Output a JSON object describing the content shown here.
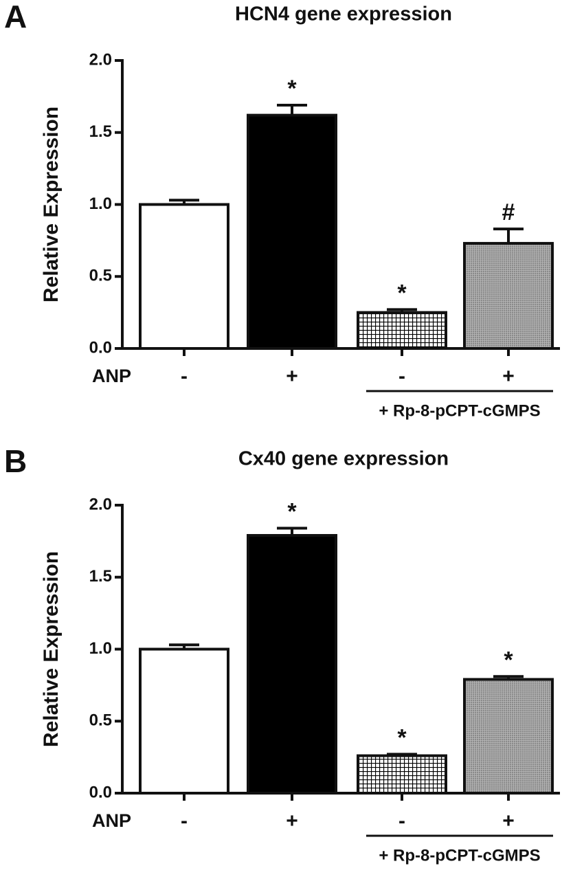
{
  "chart_data": [
    {
      "type": "bar",
      "panel": "A",
      "title": "HCN4 gene expression",
      "ylabel": "Relative Expression",
      "category_row_label": "ANP",
      "categories": [
        "-",
        "+",
        "-",
        "+"
      ],
      "values": [
        1.0,
        1.62,
        0.25,
        0.73
      ],
      "errors": [
        0.03,
        0.07,
        0.02,
        0.1
      ],
      "value_annotations": [
        null,
        "*",
        "*",
        "#"
      ],
      "colors": [
        "#ffffff",
        "#000000",
        "#ffffff",
        "#999999"
      ],
      "patterns": [
        "none",
        "none",
        "grid",
        "fine"
      ],
      "group_label": "+ Rp-8-pCPT-cGMPS",
      "group_categories": [
        2,
        3
      ],
      "ylim": [
        0,
        2
      ],
      "yticks": [
        {
          "value": 0,
          "label": "0.0"
        },
        {
          "value": 0.5,
          "label": "0.5"
        },
        {
          "value": 1,
          "label": "1.0"
        },
        {
          "value": 1.5,
          "label": "1.5"
        },
        {
          "value": 2,
          "label": "2.0"
        }
      ]
    },
    {
      "type": "bar",
      "panel": "B",
      "title": "Cx40 gene expression",
      "ylabel": "Relative Expression",
      "category_row_label": "ANP",
      "categories": [
        "-",
        "+",
        "-",
        "+"
      ],
      "values": [
        1.0,
        1.79,
        0.26,
        0.79
      ],
      "errors": [
        0.03,
        0.05,
        0.01,
        0.02
      ],
      "value_annotations": [
        null,
        "*",
        "*",
        "*"
      ],
      "colors": [
        "#ffffff",
        "#000000",
        "#ffffff",
        "#999999"
      ],
      "patterns": [
        "none",
        "none",
        "grid",
        "fine"
      ],
      "group_label": "+ Rp-8-pCPT-cGMPS",
      "group_categories": [
        2,
        3
      ],
      "ylim": [
        0,
        2
      ],
      "yticks": [
        {
          "value": 0,
          "label": "0.0"
        },
        {
          "value": 0.5,
          "label": "0.5"
        },
        {
          "value": 1,
          "label": "1.0"
        },
        {
          "value": 1.5,
          "label": "1.5"
        },
        {
          "value": 2,
          "label": "2.0"
        }
      ]
    }
  ]
}
